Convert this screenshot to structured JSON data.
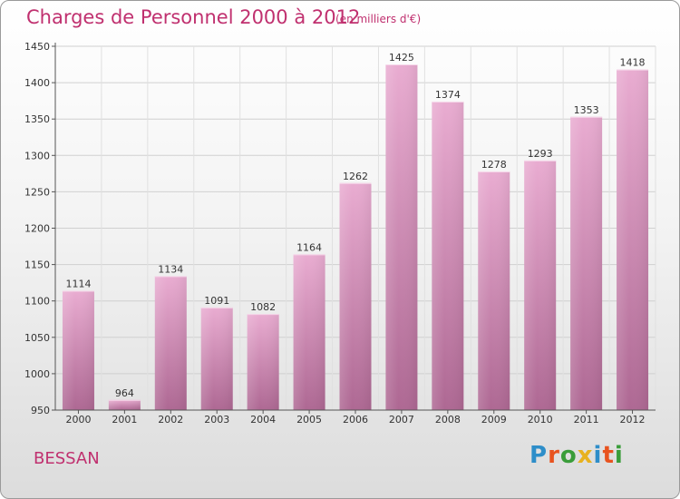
{
  "header": {
    "title": "Charges de Personnel 2000 à 2012",
    "subtitle": "(en milliers d'€)"
  },
  "footer": {
    "commune": "BESSAN",
    "logo_text": "Proxiti"
  },
  "colors": {
    "accent": "#c0306f",
    "bar_top": "#e6a7cd",
    "bar_bottom": "#b06a95"
  },
  "chart_data": {
    "type": "bar",
    "title": "Charges de Personnel 2000 à 2012",
    "subtitle": "(en milliers d'€)",
    "xlabel": "",
    "ylabel": "",
    "categories": [
      "2000",
      "2001",
      "2002",
      "2003",
      "2004",
      "2005",
      "2006",
      "2007",
      "2008",
      "2009",
      "2010",
      "2011",
      "2012"
    ],
    "values": [
      1114,
      964,
      1134,
      1091,
      1082,
      1164,
      1262,
      1425,
      1374,
      1278,
      1293,
      1353,
      1418
    ],
    "ylim": [
      950,
      1450
    ],
    "yticks": [
      950,
      1000,
      1050,
      1100,
      1150,
      1200,
      1250,
      1300,
      1350,
      1400,
      1450
    ],
    "grid": true,
    "data_labels": true
  }
}
